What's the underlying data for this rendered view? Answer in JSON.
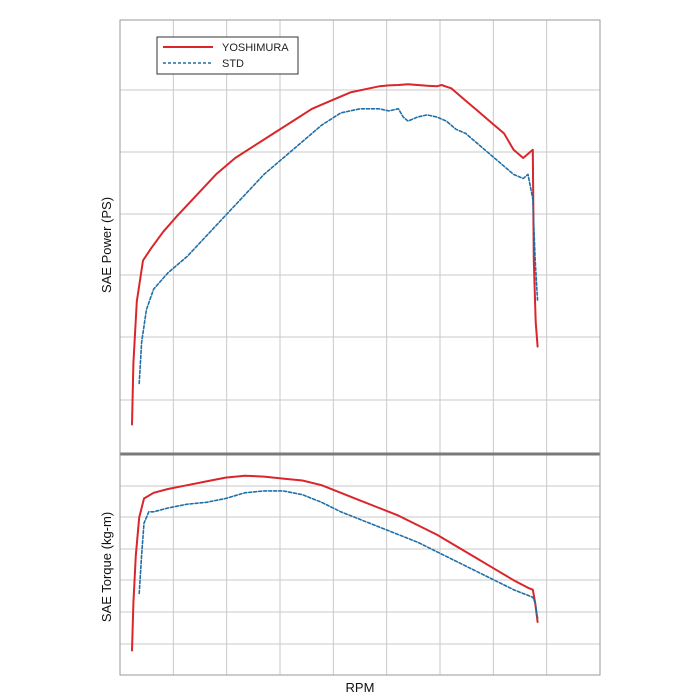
{
  "chart_data": [
    {
      "type": "line",
      "title": "",
      "xlabel": "RPM",
      "ylabel": "SAE Power (PS)",
      "grid": true,
      "legend_position": "top-left",
      "x_tick_count": 9,
      "y_gridline_count": 6,
      "series": [
        {
          "name": "YOSHIMURA",
          "color": "#d9262b",
          "style": "solid",
          "x": [
            0.025,
            0.028,
            0.035,
            0.048,
            0.065,
            0.09,
            0.12,
            0.16,
            0.2,
            0.24,
            0.28,
            0.32,
            0.36,
            0.4,
            0.44,
            0.48,
            0.52,
            0.54,
            0.56,
            0.58,
            0.6,
            0.62,
            0.64,
            0.66,
            0.67,
            0.68,
            0.69,
            0.7,
            0.71,
            0.72,
            0.74,
            0.76,
            0.78,
            0.8,
            0.82,
            0.84,
            0.85,
            0.86,
            0.862,
            0.866,
            0.87
          ],
          "values": [
            0.05,
            0.2,
            0.35,
            0.45,
            0.48,
            0.52,
            0.56,
            0.61,
            0.66,
            0.7,
            0.73,
            0.76,
            0.79,
            0.82,
            0.84,
            0.86,
            0.87,
            0.875,
            0.877,
            0.878,
            0.88,
            0.878,
            0.876,
            0.875,
            0.878,
            0.874,
            0.87,
            0.86,
            0.85,
            0.84,
            0.82,
            0.8,
            0.78,
            0.76,
            0.72,
            0.7,
            0.71,
            0.72,
            0.45,
            0.3,
            0.24
          ]
        },
        {
          "name": "STD",
          "color": "#1f6fa8",
          "style": "dashed",
          "x": [
            0.04,
            0.045,
            0.055,
            0.07,
            0.1,
            0.14,
            0.18,
            0.22,
            0.26,
            0.3,
            0.34,
            0.38,
            0.42,
            0.46,
            0.5,
            0.54,
            0.56,
            0.58,
            0.59,
            0.6,
            0.62,
            0.64,
            0.66,
            0.68,
            0.7,
            0.72,
            0.74,
            0.76,
            0.78,
            0.8,
            0.82,
            0.84,
            0.85,
            0.86,
            0.865,
            0.87
          ],
          "values": [
            0.15,
            0.25,
            0.33,
            0.38,
            0.42,
            0.46,
            0.51,
            0.56,
            0.61,
            0.66,
            0.7,
            0.74,
            0.78,
            0.81,
            0.82,
            0.82,
            0.815,
            0.82,
            0.8,
            0.79,
            0.8,
            0.805,
            0.8,
            0.79,
            0.77,
            0.76,
            0.74,
            0.72,
            0.7,
            0.68,
            0.66,
            0.65,
            0.66,
            0.6,
            0.45,
            0.35
          ]
        }
      ]
    },
    {
      "type": "line",
      "title": "",
      "xlabel": "RPM",
      "ylabel": "SAE Torque (kg-m)",
      "grid": true,
      "x_tick_count": 9,
      "y_gridline_count": 6,
      "series": [
        {
          "name": "YOSHIMURA",
          "color": "#d9262b",
          "style": "solid",
          "x": [
            0.025,
            0.028,
            0.033,
            0.04,
            0.05,
            0.07,
            0.1,
            0.14,
            0.18,
            0.22,
            0.26,
            0.3,
            0.34,
            0.38,
            0.42,
            0.46,
            0.5,
            0.54,
            0.58,
            0.62,
            0.66,
            0.7,
            0.74,
            0.78,
            0.82,
            0.85,
            0.86,
            0.865,
            0.87
          ],
          "values": [
            0.05,
            0.3,
            0.55,
            0.75,
            0.85,
            0.88,
            0.9,
            0.92,
            0.94,
            0.96,
            0.97,
            0.965,
            0.955,
            0.945,
            0.92,
            0.88,
            0.84,
            0.8,
            0.76,
            0.71,
            0.66,
            0.6,
            0.54,
            0.48,
            0.42,
            0.38,
            0.37,
            0.3,
            0.2
          ]
        },
        {
          "name": "STD",
          "color": "#1f6fa8",
          "style": "dashed",
          "x": [
            0.04,
            0.045,
            0.05,
            0.06,
            0.07,
            0.1,
            0.14,
            0.18,
            0.22,
            0.26,
            0.3,
            0.34,
            0.38,
            0.42,
            0.46,
            0.5,
            0.54,
            0.58,
            0.62,
            0.66,
            0.7,
            0.74,
            0.78,
            0.82,
            0.85,
            0.86,
            0.865,
            0.87
          ],
          "values": [
            0.35,
            0.55,
            0.72,
            0.78,
            0.78,
            0.8,
            0.82,
            0.83,
            0.85,
            0.88,
            0.89,
            0.89,
            0.87,
            0.83,
            0.78,
            0.74,
            0.7,
            0.66,
            0.62,
            0.57,
            0.52,
            0.47,
            0.42,
            0.37,
            0.34,
            0.33,
            0.3,
            0.22
          ]
        }
      ]
    }
  ]
}
